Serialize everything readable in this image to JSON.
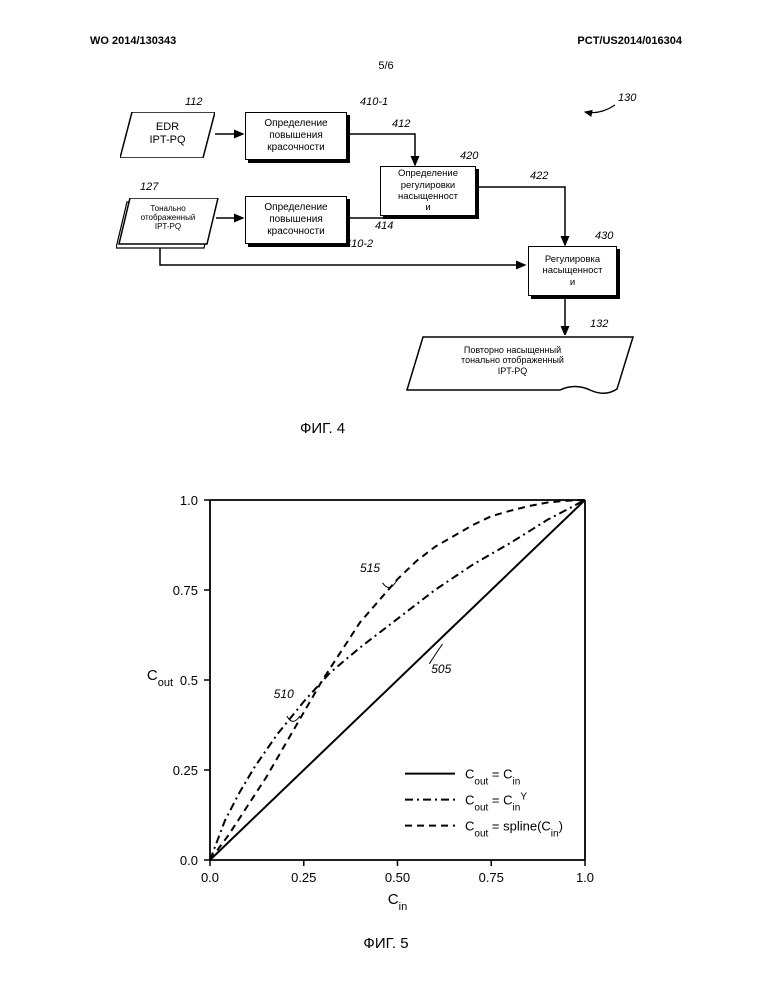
{
  "header": {
    "left": "WO 2014/130343",
    "right": "PCT/US2014/016304",
    "page_number": "5/6"
  },
  "fig4": {
    "caption": "ФИГ. 4",
    "ref_overall": "130",
    "nodes": {
      "input_edr": {
        "label": "EDR\nIPT-PQ",
        "ref": "112"
      },
      "input_tonal": {
        "label": "Тонально\nотображенный\nIPT-PQ",
        "ref": "127"
      },
      "chroma_boost_1": {
        "label": "Определение\nповышения\nкрасочности",
        "ref": "410-1"
      },
      "chroma_boost_2": {
        "label": "Определение\nповышения\nкрасочности",
        "ref": "410-2"
      },
      "sat_adjust_det": {
        "label": "Определение\nрегулировки\nнасыщенност\nи",
        "ref": "420"
      },
      "sat_adjust": {
        "label": "Регулировка\nнасыщенност\nи",
        "ref": "430"
      },
      "output": {
        "label": "Повторно насыщенный\nтонально отображенный\nIPT-PQ",
        "ref": "132"
      }
    },
    "edges": {
      "e412": "412",
      "e414": "414",
      "e422": "422"
    }
  },
  "fig5": {
    "caption": "ФИГ. 5",
    "x_label": "C",
    "x_sub": "in",
    "y_label": "C",
    "y_sub": "out",
    "xlim": [
      0.0,
      1.0
    ],
    "ylim": [
      0.0,
      1.0
    ],
    "x_ticks": [
      "0.0",
      "0.25",
      "0.50",
      "0.75",
      "1.0"
    ],
    "y_ticks": [
      "0.0",
      "0.25",
      "0.5",
      "0.75",
      "1.0"
    ],
    "series": {
      "linear": {
        "label_main": "C",
        "label_sub": "out",
        "label_rest": " = C",
        "label_sub2": "in",
        "ref": "505",
        "color": "#000000",
        "dash": "none",
        "points": [
          [
            0,
            0
          ],
          [
            1,
            1
          ]
        ]
      },
      "gamma": {
        "label_main": "C",
        "label_sub": "out",
        "label_rest": " = C",
        "label_sub2": "in",
        "label_super": "Y",
        "ref": "510",
        "color": "#000000",
        "dash": "8,4,2,4",
        "points": [
          [
            0,
            0
          ],
          [
            0.04,
            0.11
          ],
          [
            0.08,
            0.19
          ],
          [
            0.12,
            0.26
          ],
          [
            0.18,
            0.35
          ],
          [
            0.25,
            0.44
          ],
          [
            0.32,
            0.52
          ],
          [
            0.4,
            0.59
          ],
          [
            0.5,
            0.67
          ],
          [
            0.6,
            0.75
          ],
          [
            0.7,
            0.82
          ],
          [
            0.8,
            0.88
          ],
          [
            0.9,
            0.945
          ],
          [
            1.0,
            1.0
          ]
        ]
      },
      "spline": {
        "label_main": "C",
        "label_sub": "out",
        "label_rest": " = spline(C",
        "label_sub2": "in",
        "label_close": ")",
        "ref": "515",
        "color": "#000000",
        "dash": "7,5",
        "points": [
          [
            0,
            0
          ],
          [
            0.05,
            0.07
          ],
          [
            0.1,
            0.15
          ],
          [
            0.15,
            0.23
          ],
          [
            0.2,
            0.32
          ],
          [
            0.25,
            0.41
          ],
          [
            0.3,
            0.5
          ],
          [
            0.35,
            0.58
          ],
          [
            0.4,
            0.66
          ],
          [
            0.45,
            0.72
          ],
          [
            0.5,
            0.78
          ],
          [
            0.55,
            0.83
          ],
          [
            0.6,
            0.87
          ],
          [
            0.65,
            0.9
          ],
          [
            0.7,
            0.93
          ],
          [
            0.75,
            0.955
          ],
          [
            0.8,
            0.97
          ],
          [
            0.85,
            0.983
          ],
          [
            0.9,
            0.993
          ],
          [
            0.95,
            0.998
          ],
          [
            1.0,
            1.0
          ]
        ]
      }
    },
    "curve_labels": {
      "l505": "505",
      "l510": "510",
      "l515": "515"
    },
    "legend_symbol_width": 50,
    "chart_colors": {
      "axis": "#000000",
      "background": "#ffffff"
    },
    "font_sizes": {
      "tick": 13,
      "axis_label": 15,
      "caption": 15
    }
  }
}
